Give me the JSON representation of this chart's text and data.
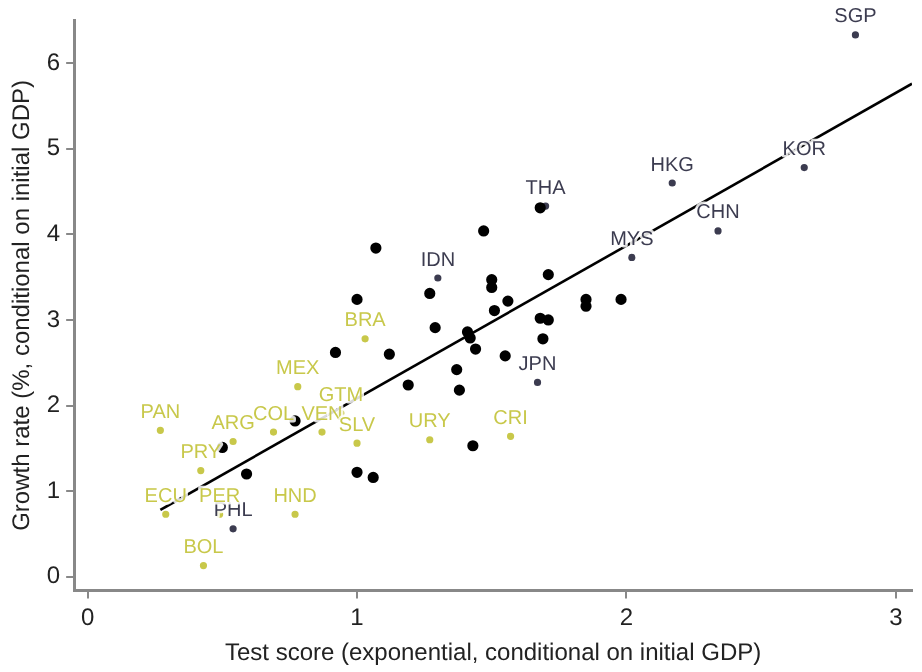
{
  "chart_data": {
    "type": "scatter",
    "xlabel": "Test score (exponential, conditional on initial GDP)",
    "ylabel": "Growth rate (%, conditional on initial GDP)",
    "xlim": [
      -0.05,
      3.06
    ],
    "xticks": [
      0,
      1,
      2,
      3
    ],
    "ylim": [
      -0.16,
      6.5
    ],
    "yticks": [
      0,
      1,
      2,
      3,
      4,
      5,
      6
    ],
    "grid": false,
    "legend": false,
    "series": [
      {
        "type": "scatter",
        "marker": "circle",
        "color": "#000000",
        "x": [
          1.07,
          1.0,
          1.27,
          1.29,
          1.47,
          1.68,
          1.71,
          1.5,
          1.5,
          1.56,
          1.51,
          1.85,
          1.85,
          1.98,
          1.41,
          1.42,
          1.68,
          1.71,
          1.69,
          1.44,
          1.55,
          1.37,
          1.38,
          1.43,
          0.92,
          1.12,
          1.19,
          0.77,
          0.5,
          0.59,
          1.0,
          1.06
        ],
        "values": [
          3.84,
          3.24,
          3.31,
          2.91,
          4.04,
          4.31,
          3.53,
          3.47,
          3.38,
          3.22,
          3.11,
          3.24,
          3.16,
          3.24,
          2.86,
          2.79,
          3.02,
          3.0,
          2.78,
          2.66,
          2.58,
          2.42,
          2.18,
          1.53,
          2.62,
          2.6,
          2.24,
          1.82,
          1.51,
          1.2,
          1.22,
          1.16
        ]
      },
      {
        "type": "scatter",
        "marker": "circle",
        "color": "#3c3c50",
        "x": [
          2.85,
          2.66,
          2.17,
          2.34,
          1.7,
          2.02,
          1.3,
          1.67,
          0.54
        ],
        "values": [
          6.33,
          4.78,
          4.6,
          4.04,
          4.33,
          3.73,
          3.49,
          2.27,
          0.56
        ],
        "value_labels": [
          "SGP",
          "KOR",
          "HKG",
          "CHN",
          "THA",
          "MYS",
          "IDN",
          "JPN",
          "PHL"
        ]
      },
      {
        "type": "scatter",
        "marker": "circle",
        "color": "#c8c84a",
        "x": [
          1.03,
          0.78,
          0.27,
          0.54,
          0.69,
          0.87,
          0.94,
          1.0,
          1.27,
          1.57,
          0.42,
          0.29,
          0.49,
          0.77,
          0.43
        ],
        "values": [
          2.78,
          2.22,
          1.71,
          1.58,
          1.69,
          1.69,
          1.91,
          1.56,
          1.6,
          1.64,
          1.24,
          0.73,
          0.73,
          0.73,
          0.13
        ],
        "value_labels": [
          "BRA",
          "MEX",
          "PAN",
          "ARG",
          "COL",
          "VEN",
          "GTM",
          "SLV",
          "URY",
          "CRI",
          "PRY",
          "ECU",
          "PER",
          "HND",
          "BOL"
        ]
      },
      {
        "type": "line",
        "marker": "none",
        "line_style": "solid",
        "color": "#000000",
        "x": [
          0.27,
          3.06
        ],
        "values": [
          0.78,
          5.76
        ]
      }
    ]
  }
}
